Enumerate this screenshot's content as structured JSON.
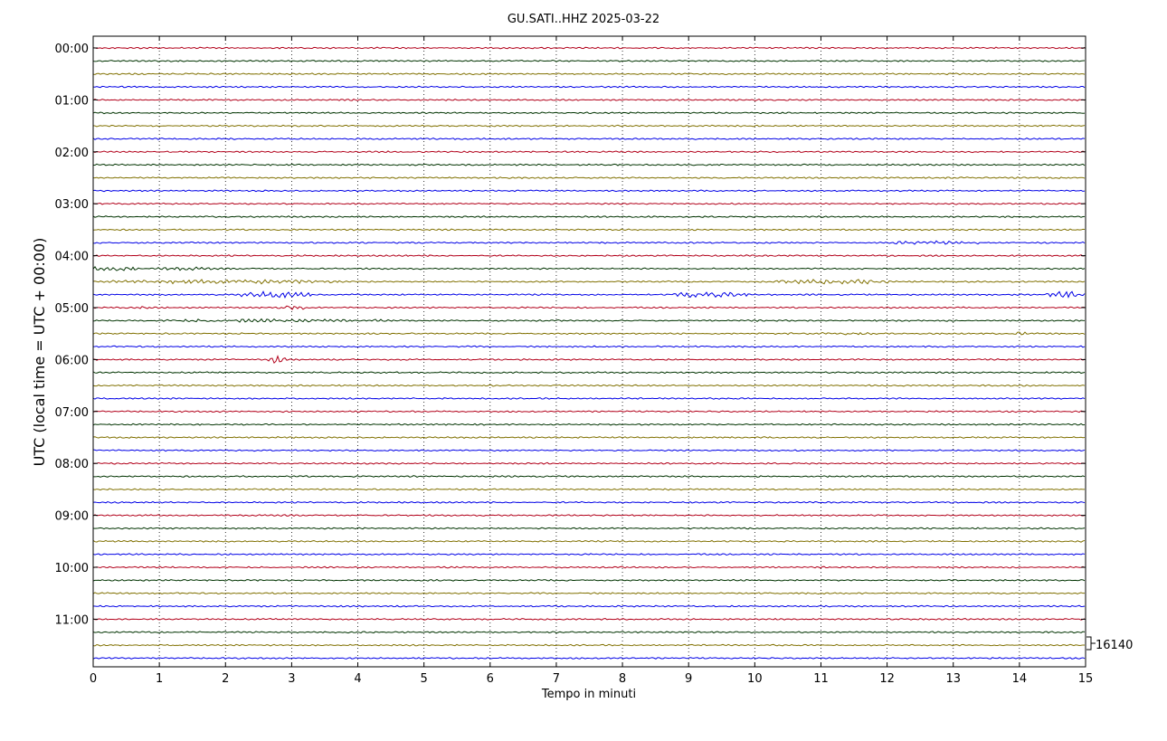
{
  "chart_data": {
    "type": "line",
    "title": "GU.SATI..HHZ 2025-03-22",
    "xlabel": "Tempo in minuti",
    "ylabel": "UTC (local time = UTC + 00:00)",
    "xlim": [
      0,
      15
    ],
    "x_ticks": [
      "0",
      "1",
      "2",
      "3",
      "4",
      "5",
      "6",
      "7",
      "8",
      "9",
      "10",
      "11",
      "12",
      "13",
      "14",
      "15"
    ],
    "y_tick_labels": [
      "00:00",
      "01:00",
      "02:00",
      "03:00",
      "04:00",
      "05:00",
      "06:00",
      "07:00",
      "08:00",
      "09:00",
      "10:00",
      "11:00"
    ],
    "trace_interval_minutes": 15,
    "trace_count": 48,
    "trace_colors": [
      "#b2001a",
      "#003300",
      "#807000",
      "#0000e6"
    ],
    "grid": "vertical dotted",
    "scale_label": "16140",
    "events": [
      {
        "trace": 15,
        "x_start": 12.1,
        "x_end": 13.5,
        "amplitude": 1.5
      },
      {
        "trace": 17,
        "x_start": 0.0,
        "x_end": 0.7,
        "amplitude": 2.5
      },
      {
        "trace": 17,
        "x_start": 0.9,
        "x_end": 1.8,
        "amplitude": 1.2
      },
      {
        "trace": 18,
        "x_start": 0.3,
        "x_end": 3.8,
        "amplitude": 1.8
      },
      {
        "trace": 18,
        "x_start": 10.3,
        "x_end": 12.1,
        "amplitude": 2.2
      },
      {
        "trace": 19,
        "x_start": 2.2,
        "x_end": 3.3,
        "amplitude": 3.2
      },
      {
        "trace": 19,
        "x_start": 8.7,
        "x_end": 9.9,
        "amplitude": 2.8
      },
      {
        "trace": 19,
        "x_start": 14.4,
        "x_end": 15.0,
        "amplitude": 3.0
      },
      {
        "trace": 20,
        "x_start": 0.6,
        "x_end": 0.9,
        "amplitude": 2.5
      },
      {
        "trace": 20,
        "x_start": 2.8,
        "x_end": 3.2,
        "amplitude": 2.5
      },
      {
        "trace": 21,
        "x_start": 1.1,
        "x_end": 4.4,
        "amplitude": 1.2
      },
      {
        "trace": 22,
        "x_start": 10.5,
        "x_end": 11.8,
        "amplitude": 1.0
      },
      {
        "trace": 22,
        "x_start": 13.9,
        "x_end": 14.1,
        "amplitude": 1.6
      },
      {
        "trace": 24,
        "x_start": 2.6,
        "x_end": 2.9,
        "amplitude": 3.5
      }
    ]
  }
}
